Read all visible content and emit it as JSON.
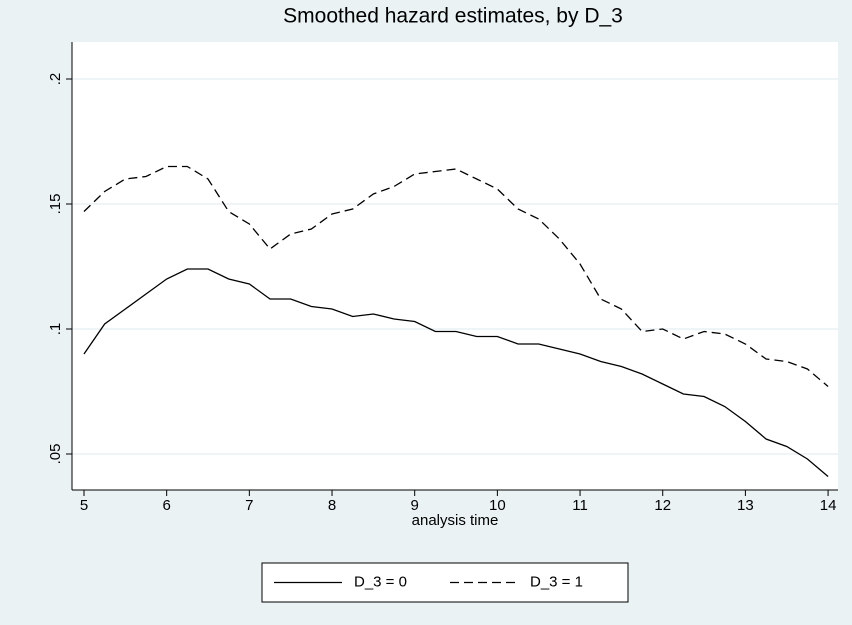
{
  "chart_data": {
    "type": "line",
    "title": "Smoothed hazard estimates, by D_3",
    "x_label": "analysis time",
    "x": [
      5,
      5.25,
      5.5,
      5.75,
      6,
      6.25,
      6.5,
      6.75,
      7,
      7.25,
      7.5,
      7.75,
      8,
      8.25,
      8.5,
      8.75,
      9,
      9.25,
      9.5,
      9.75,
      10,
      10.25,
      10.5,
      10.75,
      11,
      11.25,
      11.5,
      11.75,
      12,
      12.25,
      12.5,
      12.75,
      13,
      13.25,
      13.5,
      13.75,
      14
    ],
    "series": [
      {
        "name": "D_3 = 0",
        "color": "#000000",
        "style": "solid",
        "values": [
          0.09,
          0.102,
          0.108,
          0.114,
          0.12,
          0.124,
          0.124,
          0.12,
          0.118,
          0.112,
          0.112,
          0.109,
          0.108,
          0.105,
          0.106,
          0.104,
          0.103,
          0.099,
          0.099,
          0.097,
          0.097,
          0.094,
          0.094,
          0.092,
          0.09,
          0.087,
          0.085,
          0.082,
          0.078,
          0.074,
          0.073,
          0.069,
          0.063,
          0.056,
          0.053,
          0.048,
          0.041
        ]
      },
      {
        "name": "D_3 = 1",
        "color": "#000000",
        "style": "dashed",
        "values": [
          0.147,
          0.155,
          0.16,
          0.161,
          0.165,
          0.165,
          0.16,
          0.147,
          0.142,
          0.132,
          0.138,
          0.14,
          0.146,
          0.148,
          0.154,
          0.157,
          0.162,
          0.163,
          0.164,
          0.16,
          0.156,
          0.148,
          0.144,
          0.136,
          0.126,
          0.112,
          0.108,
          0.099,
          0.1,
          0.096,
          0.099,
          0.098,
          0.094,
          0.088,
          0.087,
          0.084,
          0.077
        ]
      }
    ],
    "xlim": [
      4.855,
      14.12
    ],
    "xticks": [
      5,
      6,
      7,
      8,
      9,
      10,
      11,
      12,
      13,
      14
    ],
    "ylim": [
      0.0356,
      0.2148
    ],
    "yticks": [
      {
        "value": 0.05,
        "label": ".05"
      },
      {
        "value": 0.1,
        "label": ".1"
      },
      {
        "value": 0.15,
        "label": ".15"
      },
      {
        "value": 0.2,
        "label": ".2"
      }
    ],
    "grid": true,
    "legend_position": "bottom"
  }
}
